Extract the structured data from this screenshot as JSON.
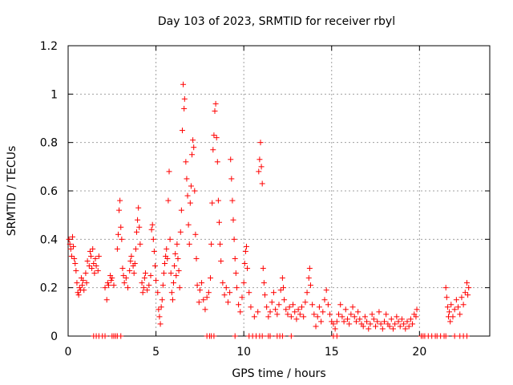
{
  "chart_data": {
    "type": "scatter",
    "title": "Day 103 of 2023, SRMTID for receiver rbyl",
    "xlabel": "GPS time / hours",
    "ylabel": "SRMTID / TECUs",
    "xlim": [
      0,
      24
    ],
    "ylim": [
      0,
      1.2
    ],
    "xticks": [
      0,
      5,
      10,
      15,
      20
    ],
    "xtick_labels": [
      "0",
      "5",
      "10",
      "15",
      "20"
    ],
    "yticks": [
      0,
      0.2,
      0.4,
      0.6,
      0.8,
      1,
      1.2
    ],
    "ytick_labels": [
      "0",
      "0.2",
      "0.4",
      "0.6",
      "0.8",
      "1",
      "1.2"
    ],
    "grid": true,
    "marker": "+",
    "color": "#ff0000",
    "series": [
      {
        "name": "SRMTID",
        "points": [
          [
            0.05,
            0.4
          ],
          [
            0.1,
            0.38
          ],
          [
            0.15,
            0.36
          ],
          [
            0.2,
            0.33
          ],
          [
            0.25,
            0.41
          ],
          [
            0.3,
            0.37
          ],
          [
            0.35,
            0.32
          ],
          [
            0.4,
            0.3
          ],
          [
            0.45,
            0.27
          ],
          [
            0.5,
            0.22
          ],
          [
            0.55,
            0.18
          ],
          [
            0.6,
            0.17
          ],
          [
            0.65,
            0.2
          ],
          [
            0.7,
            0.19
          ],
          [
            0.75,
            0.24
          ],
          [
            0.8,
            0.21
          ],
          [
            0.85,
            0.23
          ],
          [
            0.9,
            0.19
          ],
          [
            1.0,
            0.26
          ],
          [
            1.05,
            0.22
          ],
          [
            1.1,
            0.31
          ],
          [
            1.2,
            0.29
          ],
          [
            1.25,
            0.35
          ],
          [
            1.3,
            0.33
          ],
          [
            1.35,
            0.28
          ],
          [
            1.4,
            0.36
          ],
          [
            1.45,
            0.3
          ],
          [
            1.5,
            0.26
          ],
          [
            1.55,
            0.32
          ],
          [
            1.6,
            0.29
          ],
          [
            1.7,
            0.27
          ],
          [
            1.75,
            0.33
          ],
          [
            2.1,
            0.2
          ],
          [
            2.2,
            0.15
          ],
          [
            2.25,
            0.22
          ],
          [
            2.3,
            0.21
          ],
          [
            2.4,
            0.25
          ],
          [
            2.45,
            0.23
          ],
          [
            2.5,
            0.24
          ],
          [
            2.6,
            0.21
          ],
          [
            2.8,
            0.36
          ],
          [
            2.85,
            0.42
          ],
          [
            2.9,
            0.52
          ],
          [
            2.95,
            0.56
          ],
          [
            3.0,
            0.45
          ],
          [
            3.05,
            0.4
          ],
          [
            3.1,
            0.28
          ],
          [
            3.15,
            0.25
          ],
          [
            3.2,
            0.22
          ],
          [
            3.3,
            0.24
          ],
          [
            3.4,
            0.2
          ],
          [
            3.5,
            0.27
          ],
          [
            3.55,
            0.31
          ],
          [
            3.6,
            0.33
          ],
          [
            3.7,
            0.29
          ],
          [
            3.75,
            0.26
          ],
          [
            3.8,
            0.3
          ],
          [
            3.85,
            0.36
          ],
          [
            3.9,
            0.43
          ],
          [
            3.95,
            0.48
          ],
          [
            4.0,
            0.53
          ],
          [
            4.05,
            0.45
          ],
          [
            4.1,
            0.38
          ],
          [
            4.2,
            0.22
          ],
          [
            4.25,
            0.18
          ],
          [
            4.3,
            0.2
          ],
          [
            4.35,
            0.24
          ],
          [
            4.4,
            0.26
          ],
          [
            4.5,
            0.19
          ],
          [
            4.6,
            0.21
          ],
          [
            4.7,
            0.25
          ],
          [
            4.75,
            0.44
          ],
          [
            4.8,
            0.46
          ],
          [
            4.85,
            0.4
          ],
          [
            4.9,
            0.35
          ],
          [
            4.95,
            0.29
          ],
          [
            5.0,
            0.23
          ],
          [
            5.1,
            0.18
          ],
          [
            5.15,
            0.11
          ],
          [
            5.2,
            0.08
          ],
          [
            5.25,
            0.05
          ],
          [
            5.3,
            0.12
          ],
          [
            5.35,
            0.15
          ],
          [
            5.4,
            0.21
          ],
          [
            5.45,
            0.26
          ],
          [
            5.5,
            0.3
          ],
          [
            5.55,
            0.33
          ],
          [
            5.6,
            0.36
          ],
          [
            5.65,
            0.32
          ],
          [
            5.7,
            0.56
          ],
          [
            5.75,
            0.68
          ],
          [
            5.8,
            0.4
          ],
          [
            5.85,
            0.26
          ],
          [
            5.9,
            0.18
          ],
          [
            5.95,
            0.15
          ],
          [
            6.0,
            0.22
          ],
          [
            6.05,
            0.29
          ],
          [
            6.1,
            0.34
          ],
          [
            6.15,
            0.25
          ],
          [
            6.2,
            0.38
          ],
          [
            6.25,
            0.32
          ],
          [
            6.3,
            0.27
          ],
          [
            6.35,
            0.2
          ],
          [
            6.4,
            0.43
          ],
          [
            6.45,
            0.52
          ],
          [
            6.5,
            0.85
          ],
          [
            6.55,
            1.04
          ],
          [
            6.6,
            0.94
          ],
          [
            6.63,
            0.98
          ],
          [
            6.7,
            0.72
          ],
          [
            6.75,
            0.65
          ],
          [
            6.8,
            0.58
          ],
          [
            6.85,
            0.46
          ],
          [
            6.9,
            0.38
          ],
          [
            6.95,
            0.55
          ],
          [
            7.0,
            0.62
          ],
          [
            7.05,
            0.75
          ],
          [
            7.1,
            0.81
          ],
          [
            7.15,
            0.78
          ],
          [
            7.2,
            0.6
          ],
          [
            7.25,
            0.42
          ],
          [
            7.3,
            0.32
          ],
          [
            7.35,
            0.21
          ],
          [
            7.45,
            0.14
          ],
          [
            7.5,
            0.19
          ],
          [
            7.6,
            0.22
          ],
          [
            7.7,
            0.15
          ],
          [
            7.8,
            0.11
          ],
          [
            7.9,
            0.16
          ],
          [
            8.0,
            0.18
          ],
          [
            8.1,
            0.24
          ],
          [
            8.15,
            0.38
          ],
          [
            8.2,
            0.55
          ],
          [
            8.25,
            0.77
          ],
          [
            8.3,
            0.83
          ],
          [
            8.35,
            0.93
          ],
          [
            8.4,
            0.96
          ],
          [
            8.45,
            0.82
          ],
          [
            8.5,
            0.72
          ],
          [
            8.55,
            0.56
          ],
          [
            8.6,
            0.47
          ],
          [
            8.65,
            0.38
          ],
          [
            8.7,
            0.31
          ],
          [
            8.8,
            0.22
          ],
          [
            8.9,
            0.17
          ],
          [
            9.0,
            0.2
          ],
          [
            9.1,
            0.14
          ],
          [
            9.2,
            0.18
          ],
          [
            9.25,
            0.73
          ],
          [
            9.3,
            0.65
          ],
          [
            9.35,
            0.56
          ],
          [
            9.4,
            0.48
          ],
          [
            9.45,
            0.4
          ],
          [
            9.5,
            0.32
          ],
          [
            9.55,
            0.26
          ],
          [
            9.6,
            0.2
          ],
          [
            9.7,
            0.13
          ],
          [
            9.8,
            0.1
          ],
          [
            9.9,
            0.16
          ],
          [
            10.0,
            0.22
          ],
          [
            10.05,
            0.3
          ],
          [
            10.1,
            0.35
          ],
          [
            10.15,
            0.37
          ],
          [
            10.2,
            0.28
          ],
          [
            10.3,
            0.18
          ],
          [
            10.4,
            0.12
          ],
          [
            10.6,
            0.08
          ],
          [
            10.8,
            0.1
          ],
          [
            10.85,
            0.68
          ],
          [
            10.9,
            0.73
          ],
          [
            10.95,
            0.8
          ],
          [
            11.0,
            0.7
          ],
          [
            11.05,
            0.63
          ],
          [
            11.1,
            0.28
          ],
          [
            11.15,
            0.22
          ],
          [
            11.2,
            0.17
          ],
          [
            11.3,
            0.12
          ],
          [
            11.4,
            0.08
          ],
          [
            11.5,
            0.1
          ],
          [
            11.6,
            0.14
          ],
          [
            11.7,
            0.18
          ],
          [
            11.8,
            0.11
          ],
          [
            11.9,
            0.09
          ],
          [
            12.0,
            0.13
          ],
          [
            12.1,
            0.19
          ],
          [
            12.2,
            0.24
          ],
          [
            12.25,
            0.2
          ],
          [
            12.3,
            0.15
          ],
          [
            12.4,
            0.11
          ],
          [
            12.5,
            0.09
          ],
          [
            12.6,
            0.12
          ],
          [
            12.7,
            0.08
          ],
          [
            12.8,
            0.13
          ],
          [
            12.9,
            0.1
          ],
          [
            13.0,
            0.07
          ],
          [
            13.1,
            0.11
          ],
          [
            13.2,
            0.09
          ],
          [
            13.3,
            0.12
          ],
          [
            13.4,
            0.08
          ],
          [
            13.5,
            0.14
          ],
          [
            13.6,
            0.18
          ],
          [
            13.7,
            0.24
          ],
          [
            13.75,
            0.28
          ],
          [
            13.8,
            0.21
          ],
          [
            13.9,
            0.13
          ],
          [
            14.0,
            0.09
          ],
          [
            14.1,
            0.04
          ],
          [
            14.2,
            0.08
          ],
          [
            14.3,
            0.12
          ],
          [
            14.4,
            0.06
          ],
          [
            14.5,
            0.1
          ],
          [
            14.6,
            0.15
          ],
          [
            14.7,
            0.19
          ],
          [
            14.8,
            0.13
          ],
          [
            14.9,
            0.09
          ],
          [
            15.0,
            0.06
          ],
          [
            15.1,
            0.05
          ],
          [
            15.2,
            0.03
          ],
          [
            15.3,
            0.06
          ],
          [
            15.4,
            0.09
          ],
          [
            15.5,
            0.13
          ],
          [
            15.6,
            0.08
          ],
          [
            15.7,
            0.06
          ],
          [
            15.8,
            0.11
          ],
          [
            15.9,
            0.07
          ],
          [
            16.0,
            0.05
          ],
          [
            16.1,
            0.09
          ],
          [
            16.2,
            0.12
          ],
          [
            16.3,
            0.08
          ],
          [
            16.4,
            0.06
          ],
          [
            16.5,
            0.1
          ],
          [
            16.6,
            0.07
          ],
          [
            16.7,
            0.05
          ],
          [
            16.8,
            0.04
          ],
          [
            16.9,
            0.08
          ],
          [
            17.0,
            0.06
          ],
          [
            17.1,
            0.03
          ],
          [
            17.2,
            0.05
          ],
          [
            17.3,
            0.09
          ],
          [
            17.4,
            0.07
          ],
          [
            17.5,
            0.04
          ],
          [
            17.6,
            0.06
          ],
          [
            17.7,
            0.1
          ],
          [
            17.8,
            0.05
          ],
          [
            17.9,
            0.03
          ],
          [
            18.0,
            0.06
          ],
          [
            18.1,
            0.09
          ],
          [
            18.2,
            0.05
          ],
          [
            18.3,
            0.04
          ],
          [
            18.4,
            0.07
          ],
          [
            18.5,
            0.03
          ],
          [
            18.6,
            0.05
          ],
          [
            18.7,
            0.08
          ],
          [
            18.8,
            0.06
          ],
          [
            18.9,
            0.04
          ],
          [
            19.0,
            0.07
          ],
          [
            19.1,
            0.05
          ],
          [
            19.2,
            0.03
          ],
          [
            19.3,
            0.06
          ],
          [
            19.4,
            0.04
          ],
          [
            19.5,
            0.07
          ],
          [
            19.6,
            0.05
          ],
          [
            19.7,
            0.09
          ],
          [
            19.8,
            0.08
          ],
          [
            19.85,
            0.11
          ],
          [
            21.5,
            0.2
          ],
          [
            21.55,
            0.16
          ],
          [
            21.6,
            0.12
          ],
          [
            21.65,
            0.08
          ],
          [
            21.7,
            0.1
          ],
          [
            21.75,
            0.06
          ],
          [
            21.8,
            0.13
          ],
          [
            21.9,
            0.08
          ],
          [
            22.0,
            0.11
          ],
          [
            22.1,
            0.15
          ],
          [
            22.2,
            0.12
          ],
          [
            22.3,
            0.09
          ],
          [
            22.4,
            0.16
          ],
          [
            22.5,
            0.13
          ],
          [
            22.6,
            0.18
          ],
          [
            22.7,
            0.22
          ],
          [
            22.75,
            0.17
          ],
          [
            22.8,
            0.2
          ]
        ]
      }
    ],
    "baseline_points_x": [
      1.45,
      1.6,
      1.75,
      1.95,
      2.1,
      2.5,
      2.6,
      2.7,
      2.8,
      3.0,
      7.9,
      8.05,
      8.15,
      8.3,
      9.5,
      10.3,
      10.5,
      10.7,
      10.9,
      11.05,
      11.4,
      11.5,
      11.9,
      12.05,
      12.2,
      12.7,
      15.1,
      15.3,
      20.1,
      20.2,
      20.3,
      20.5,
      20.7,
      20.9,
      21.0,
      21.2,
      21.4,
      21.5,
      22.0,
      22.3,
      22.5,
      22.7
    ]
  }
}
